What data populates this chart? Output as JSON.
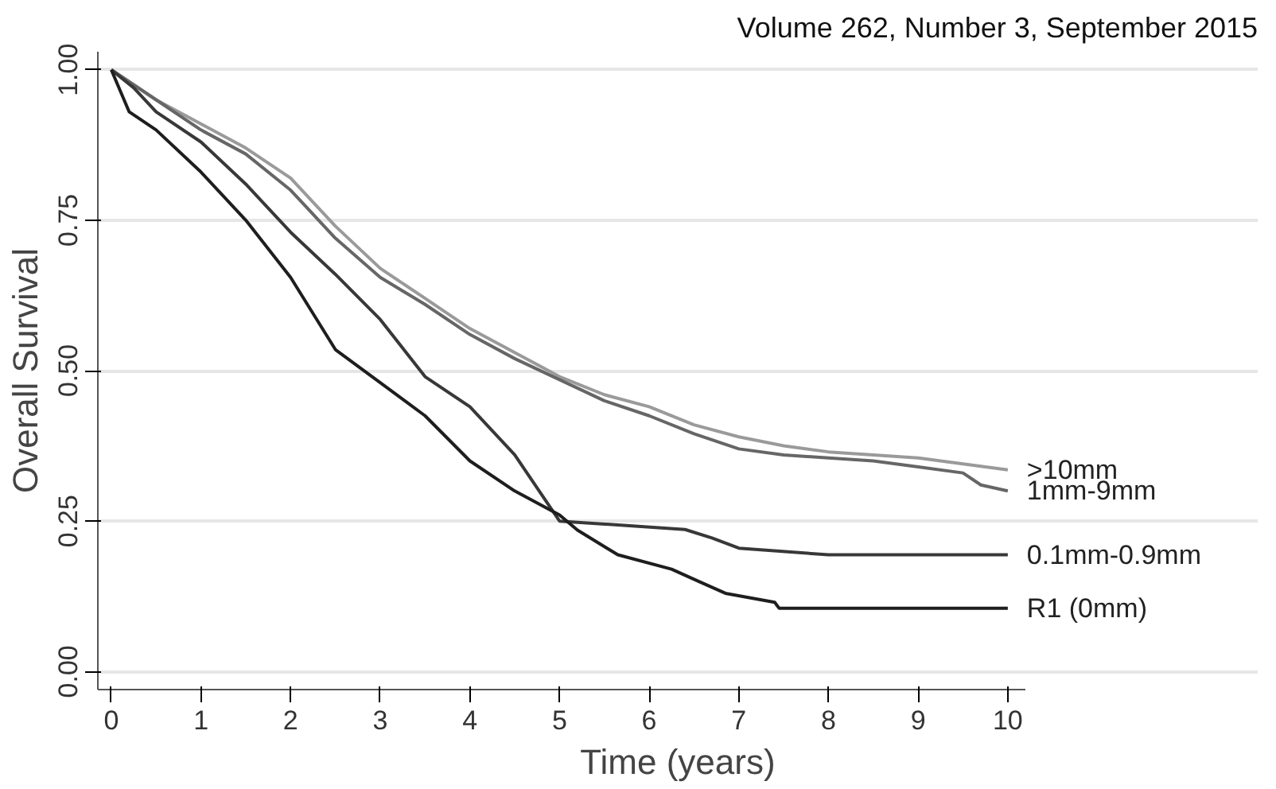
{
  "chart_data": {
    "type": "line",
    "xlabel": "Time (years)",
    "ylabel": "Overall Survival",
    "annotations": [
      "Volume 262, Number 3, September 2015"
    ],
    "xlim": [
      -0.15,
      10.2
    ],
    "ylim": [
      -0.03,
      1.03
    ],
    "xticks": [
      0,
      1,
      2,
      3,
      4,
      5,
      6,
      7,
      8,
      9,
      10
    ],
    "yticks": [
      {
        "value": 0,
        "label": "0.00"
      },
      {
        "value": 0.25,
        "label": "0.25"
      },
      {
        "value": 0.5,
        "label": "0.50"
      },
      {
        "value": 0.75,
        "label": "0.75"
      },
      {
        "value": 1,
        "label": "1.00"
      }
    ],
    "grid": "y",
    "line_style": "solid",
    "marker": "none",
    "series": [
      {
        "name": ">10mm",
        "color": "#9a9a9a",
        "x": [
          0,
          0.5,
          1,
          1.5,
          2,
          2.5,
          3,
          3.5,
          4,
          4.5,
          5,
          5.5,
          6,
          6.5,
          7,
          7.5,
          8,
          8.5,
          9,
          9.5,
          10
        ],
        "values": [
          1,
          0.95,
          0.91,
          0.87,
          0.82,
          0.74,
          0.67,
          0.62,
          0.57,
          0.53,
          0.49,
          0.46,
          0.44,
          0.41,
          0.39,
          0.375,
          0.365,
          0.36,
          0.355,
          0.345,
          0.335
        ]
      },
      {
        "name": "1mm-9mm",
        "color": "#666666",
        "x": [
          0,
          0.5,
          1,
          1.5,
          2,
          2.5,
          3,
          3.5,
          4,
          4.5,
          5,
          5.5,
          6,
          6.5,
          7,
          7.5,
          8,
          8.5,
          9,
          9.5,
          9.7,
          10
        ],
        "values": [
          1,
          0.95,
          0.9,
          0.86,
          0.8,
          0.72,
          0.655,
          0.61,
          0.56,
          0.52,
          0.485,
          0.45,
          0.425,
          0.395,
          0.37,
          0.36,
          0.355,
          0.35,
          0.34,
          0.33,
          0.31,
          0.3
        ]
      },
      {
        "name": "0.1mm-0.9mm",
        "color": "#383838",
        "x": [
          0,
          0.25,
          0.5,
          1,
          1.5,
          2,
          2.5,
          3,
          3.5,
          4,
          4.5,
          5,
          6.4,
          6.7,
          7.0,
          8.0,
          10
        ],
        "values": [
          1,
          0.97,
          0.93,
          0.88,
          0.81,
          0.73,
          0.66,
          0.585,
          0.49,
          0.44,
          0.36,
          0.25,
          0.236,
          0.222,
          0.205,
          0.194,
          0.194
        ]
      },
      {
        "name": "R1 (0mm)",
        "color": "#1e1e1e",
        "x": [
          0,
          0.2,
          0.5,
          1,
          1.5,
          2,
          2.5,
          3,
          3.5,
          4,
          4.5,
          5,
          5.2,
          5.65,
          6.25,
          6.55,
          6.85,
          7.4,
          7.45,
          10
        ],
        "values": [
          1,
          0.93,
          0.9,
          0.83,
          0.75,
          0.655,
          0.535,
          0.48,
          0.425,
          0.35,
          0.3,
          0.26,
          0.235,
          0.194,
          0.17,
          0.15,
          0.13,
          0.115,
          0.105,
          0.105
        ]
      }
    ]
  }
}
